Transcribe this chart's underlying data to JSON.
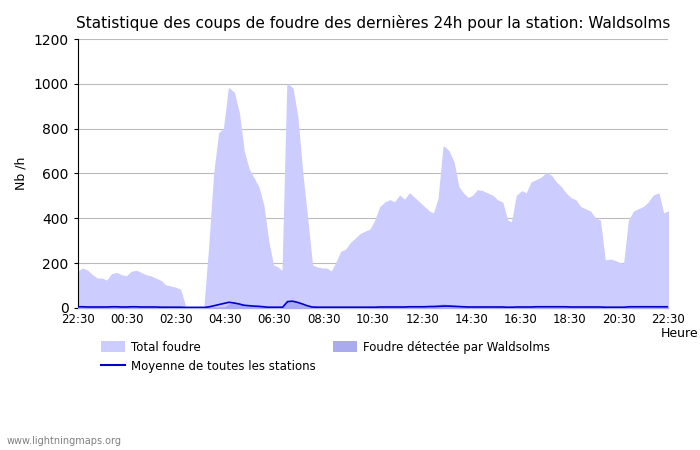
{
  "title": "Statistique des coups de foudre des dernières 24h pour la station: Waldsolms",
  "ylabel": "Nb /h",
  "xlabel": "Heure",
  "watermark": "www.lightningmaps.org",
  "ylim": [
    0,
    1200
  ],
  "yticks": [
    0,
    200,
    400,
    600,
    800,
    1000,
    1200
  ],
  "xtick_labels": [
    "22:30",
    "00:30",
    "02:30",
    "04:30",
    "06:30",
    "08:30",
    "10:30",
    "12:30",
    "14:30",
    "16:30",
    "18:30",
    "20:30",
    "22:30"
  ],
  "fill_color": "#ccccff",
  "fill_alpha": 0.85,
  "line_color_mean": "#0000cc",
  "bg_color": "#ffffff",
  "grid_color": "#bbbbbb",
  "legend": {
    "total_foudre_label": "Total foudre",
    "moyenne_label": "Moyenne de toutes les stations",
    "waldsolms_label": "Foudre détectée par Waldsolms"
  },
  "total_foudre": [
    160,
    175,
    165,
    145,
    130,
    130,
    120,
    150,
    155,
    145,
    140,
    160,
    165,
    155,
    145,
    140,
    130,
    120,
    100,
    95,
    90,
    80,
    5,
    5,
    5,
    5,
    5,
    280,
    600,
    780,
    800,
    980,
    960,
    870,
    700,
    620,
    580,
    540,
    460,
    300,
    190,
    180,
    160,
    1000,
    980,
    850,
    600,
    400,
    190,
    180,
    175,
    175,
    160,
    200,
    250,
    260,
    290,
    310,
    330,
    340,
    350,
    390,
    450,
    470,
    480,
    470,
    500,
    480,
    510,
    490,
    470,
    450,
    430,
    420,
    490,
    720,
    700,
    650,
    540,
    510,
    490,
    500,
    525,
    520,
    510,
    500,
    480,
    470,
    390,
    380,
    500,
    520,
    510,
    560,
    570,
    580,
    600,
    590,
    560,
    540,
    510,
    490,
    480,
    450,
    440,
    430,
    400,
    390,
    210,
    215,
    210,
    200,
    195,
    390,
    430,
    440,
    450,
    470,
    500,
    510,
    420,
    430
  ],
  "waldsolms": [
    0,
    0,
    0,
    0,
    0,
    0,
    0,
    0,
    0,
    0,
    0,
    0,
    0,
    0,
    0,
    0,
    0,
    0,
    0,
    0,
    0,
    0,
    0,
    0,
    0,
    0,
    0,
    0,
    0,
    0,
    0,
    15,
    20,
    18,
    12,
    10,
    8,
    5,
    0,
    0,
    0,
    0,
    0,
    25,
    28,
    22,
    15,
    5,
    0,
    0,
    0,
    0,
    0,
    0,
    0,
    0,
    0,
    0,
    0,
    0,
    0,
    0,
    0,
    0,
    0,
    0,
    0,
    0,
    5,
    5,
    5,
    5,
    8,
    10,
    12,
    15,
    12,
    10,
    8,
    5,
    0,
    0,
    0,
    0,
    0,
    0,
    0,
    0,
    0,
    0,
    0,
    0,
    0,
    0,
    0,
    0,
    0,
    0,
    0,
    0,
    0,
    0,
    0,
    0,
    0,
    0,
    0,
    0,
    0,
    0,
    0,
    0,
    0,
    0,
    0,
    0,
    0,
    0,
    0,
    0,
    5,
    5
  ],
  "mean_stations": [
    5,
    5,
    4,
    4,
    4,
    4,
    4,
    5,
    5,
    4,
    4,
    5,
    5,
    4,
    4,
    4,
    4,
    3,
    3,
    3,
    3,
    3,
    2,
    2,
    2,
    2,
    2,
    5,
    10,
    15,
    20,
    25,
    22,
    18,
    12,
    10,
    8,
    7,
    5,
    3,
    3,
    3,
    3,
    28,
    30,
    25,
    18,
    10,
    4,
    3,
    3,
    3,
    3,
    3,
    3,
    3,
    3,
    3,
    3,
    3,
    3,
    3,
    4,
    4,
    4,
    4,
    4,
    4,
    5,
    5,
    5,
    5,
    6,
    6,
    7,
    8,
    8,
    7,
    6,
    5,
    4,
    4,
    4,
    4,
    4,
    4,
    4,
    4,
    3,
    3,
    4,
    4,
    4,
    4,
    5,
    5,
    5,
    5,
    5,
    5,
    5,
    4,
    4,
    4,
    4,
    4,
    4,
    4,
    3,
    3,
    3,
    3,
    3,
    5,
    5,
    5,
    5,
    5,
    5,
    5,
    5,
    5
  ]
}
